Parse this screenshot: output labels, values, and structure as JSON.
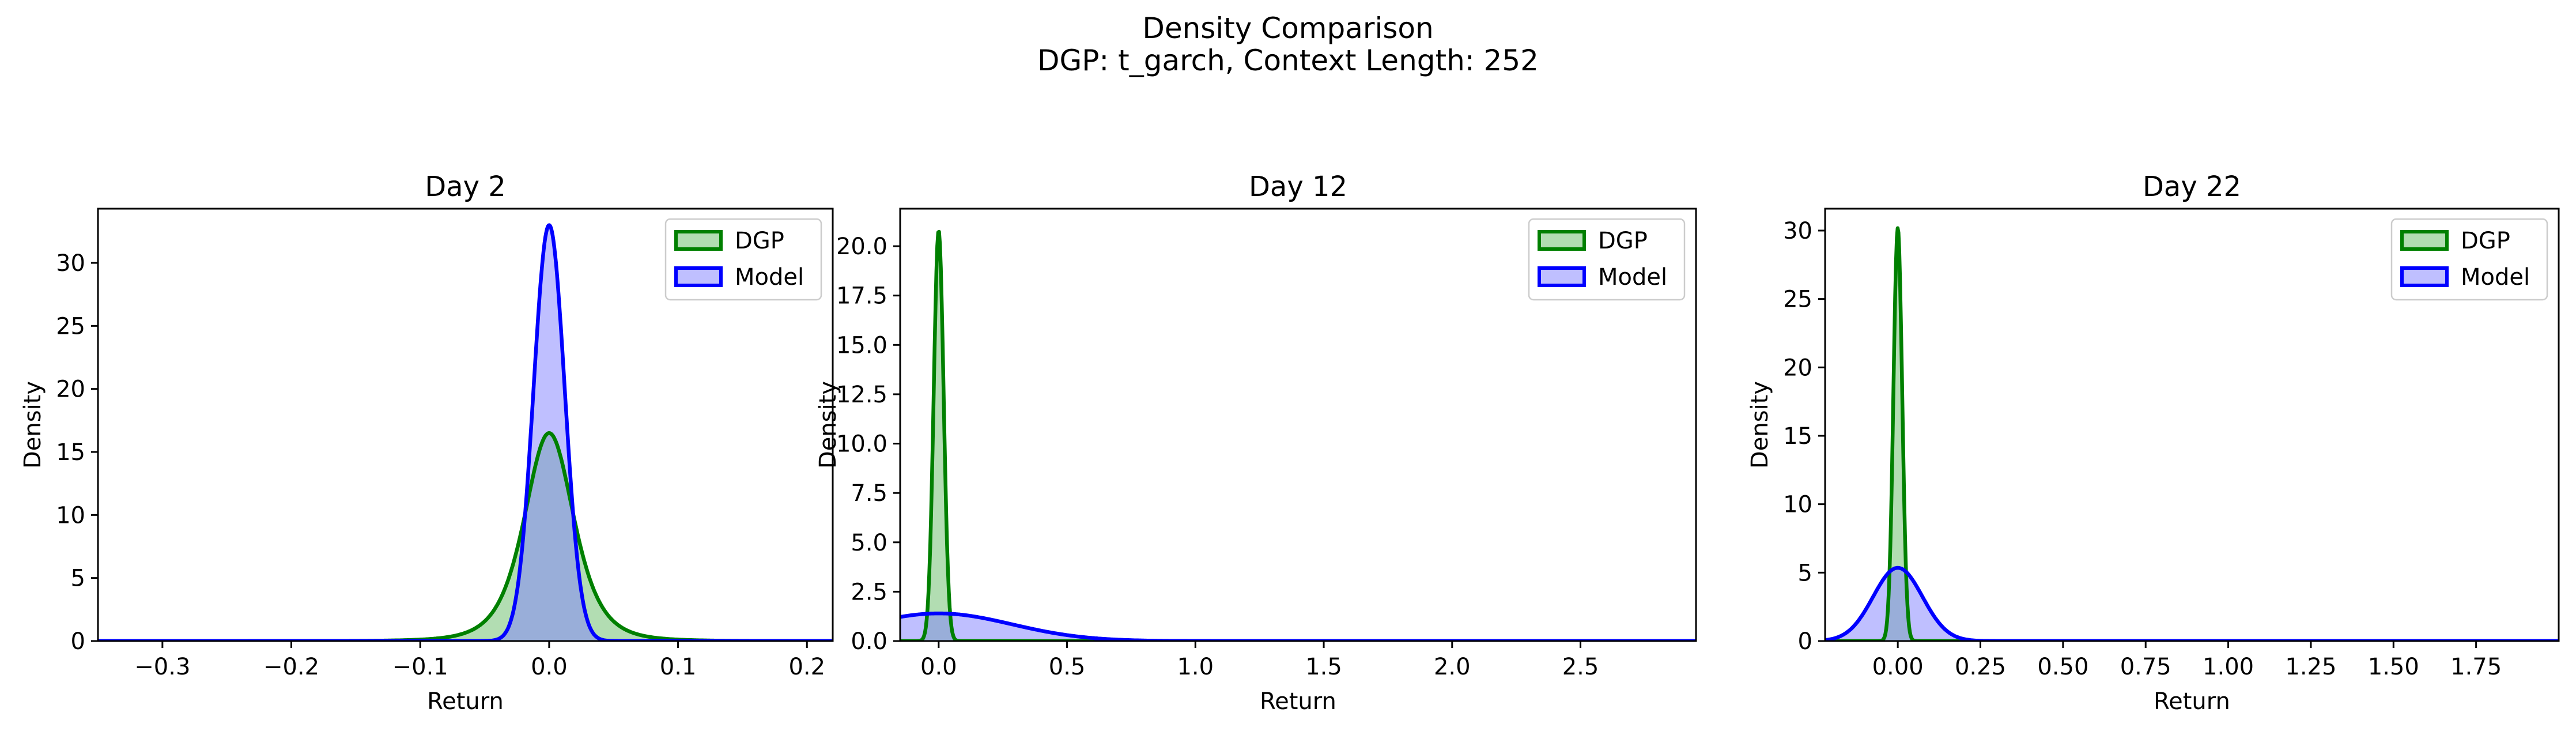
{
  "figure": {
    "title_line1": "Density Comparison",
    "title_line2": "DGP: t_garch, Context Length: 252"
  },
  "colors": {
    "dgp_line": "#008000",
    "dgp_fill": "#66bb66",
    "model_line": "#0000ff",
    "model_fill": "#8080ff",
    "overlap_fill": "#7891c4"
  },
  "chart_data": [
    {
      "type": "area",
      "title": "Day 2",
      "xlabel": "Return",
      "ylabel": "Density",
      "xlim": [
        -0.35,
        0.22
      ],
      "ylim": [
        0,
        34.3
      ],
      "xticks": [
        -0.3,
        -0.2,
        -0.1,
        0.0,
        0.1,
        0.2
      ],
      "xtick_labels": [
        "−0.3",
        "−0.2",
        "−0.1",
        "0.0",
        "0.1",
        "0.2"
      ],
      "yticks": [
        0,
        5,
        10,
        15,
        20,
        25,
        30
      ],
      "ytick_labels": [
        "0",
        "5",
        "10",
        "15",
        "20",
        "25",
        "30"
      ],
      "legend_position": "top-right",
      "grid": false,
      "series": [
        {
          "name": "DGP",
          "distribution": "student-t",
          "mean": 0.0,
          "peak_density": 16.5,
          "scale": 0.02,
          "df": 4
        },
        {
          "name": "Model",
          "distribution": "normal",
          "mean": 0.0,
          "peak_density": 33.0,
          "std": 0.0121
        }
      ]
    },
    {
      "type": "area",
      "title": "Day 12",
      "xlabel": "Return",
      "ylabel": "Density",
      "xlim": [
        -0.15,
        2.95
      ],
      "ylim": [
        0,
        21.9
      ],
      "xticks": [
        0.0,
        0.5,
        1.0,
        1.5,
        2.0,
        2.5
      ],
      "xtick_labels": [
        "0.0",
        "0.5",
        "1.0",
        "1.5",
        "2.0",
        "2.5"
      ],
      "yticks": [
        0.0,
        2.5,
        5.0,
        7.5,
        10.0,
        12.5,
        15.0,
        17.5,
        20.0
      ],
      "ytick_labels": [
        "0.0",
        "2.5",
        "5.0",
        "7.5",
        "10.0",
        "12.5",
        "15.0",
        "17.5",
        "20.0"
      ],
      "legend_position": "top-right",
      "grid": false,
      "series": [
        {
          "name": "DGP",
          "distribution": "normal",
          "mean": 0.0,
          "peak_density": 20.8,
          "std": 0.0192
        },
        {
          "name": "Model",
          "distribution": "normal",
          "mean": 0.0,
          "peak_density": 1.4,
          "std": 0.285
        }
      ]
    },
    {
      "type": "area",
      "title": "Day 22",
      "xlabel": "Return",
      "ylabel": "Density",
      "xlim": [
        -0.22,
        2.0
      ],
      "ylim": [
        0,
        31.6
      ],
      "xticks": [
        0.0,
        0.25,
        0.5,
        0.75,
        1.0,
        1.25,
        1.5,
        1.75
      ],
      "xtick_labels": [
        "0.00",
        "0.25",
        "0.50",
        "0.75",
        "1.00",
        "1.25",
        "1.50",
        "1.75"
      ],
      "yticks": [
        0,
        5,
        10,
        15,
        20,
        25,
        30
      ],
      "ytick_labels": [
        "0",
        "5",
        "10",
        "15",
        "20",
        "25",
        "30"
      ],
      "legend_position": "top-right",
      "grid": false,
      "series": [
        {
          "name": "DGP",
          "distribution": "normal",
          "mean": 0.0,
          "peak_density": 30.2,
          "std": 0.0132
        },
        {
          "name": "Model",
          "distribution": "normal",
          "mean": 0.0,
          "peak_density": 5.35,
          "std": 0.0746
        }
      ]
    }
  ]
}
